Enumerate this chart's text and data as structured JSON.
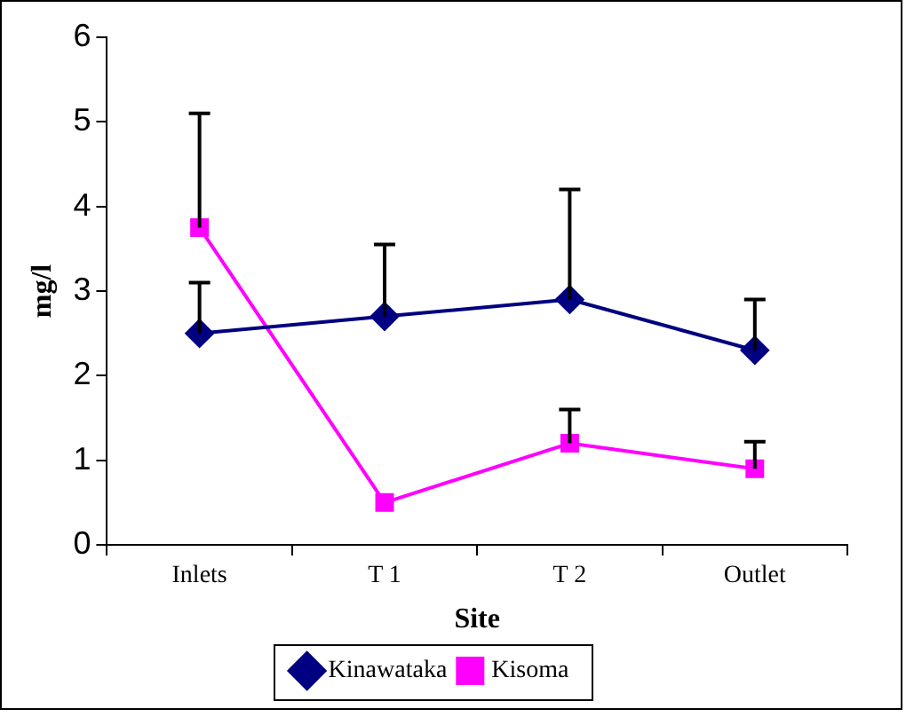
{
  "chart_data": {
    "type": "line",
    "xlabel": "Site",
    "ylabel": "mg/l",
    "categories": [
      "Inlets",
      "T 1",
      "T 2",
      "Outlet"
    ],
    "series": [
      {
        "name": "Kinawataka",
        "color": "#000080",
        "marker": "diamond",
        "values": [
          2.5,
          2.7,
          2.9,
          2.3
        ],
        "errors": [
          [
            2.5,
            3.1
          ],
          [
            2.7,
            3.55
          ],
          [
            2.9,
            4.2
          ],
          [
            2.3,
            2.9
          ]
        ]
      },
      {
        "name": "Kisoma",
        "color": "#ff00ff",
        "marker": "square",
        "values": [
          3.75,
          0.5,
          1.2,
          0.9
        ],
        "errors": [
          [
            3.75,
            5.1
          ],
          null,
          [
            1.2,
            1.6
          ],
          [
            0.9,
            1.22
          ]
        ]
      }
    ],
    "ylim": [
      0,
      6
    ],
    "yticks": [
      0,
      1,
      2,
      3,
      4,
      5,
      6
    ],
    "grid": false,
    "legend": "bottom",
    "line_style": "solid"
  }
}
